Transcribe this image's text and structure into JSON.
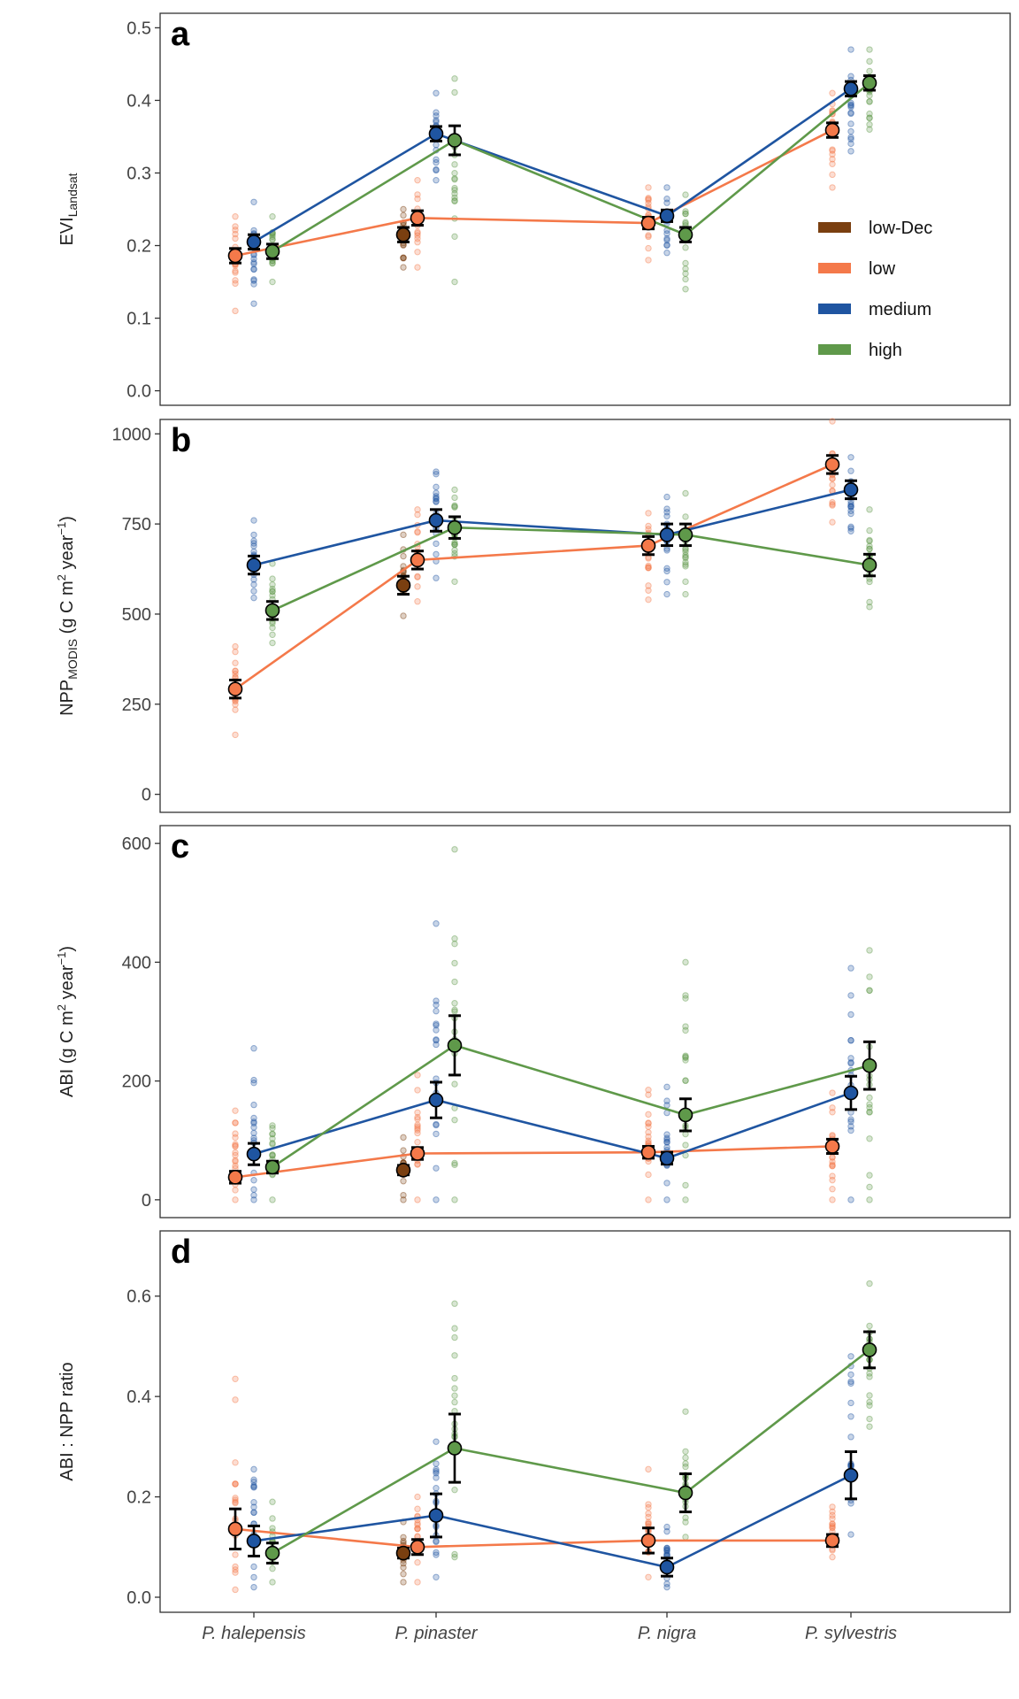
{
  "chart_data": {
    "type": "line",
    "categories": [
      "P. halepensis",
      "P. pinaster",
      "P. nigra",
      "P. sylvestris"
    ],
    "legend": {
      "placement": "inside panel a, right",
      "entries": [
        {
          "name": "low-Dec",
          "color": "#7a3f10"
        },
        {
          "name": "low",
          "color": "#f4794a"
        },
        {
          "name": "medium",
          "color": "#1f55a1"
        },
        {
          "name": "high",
          "color": "#5f994a"
        }
      ]
    },
    "panels": [
      {
        "letter": "a",
        "ylabel": {
          "main": "EVI",
          "sub": "Landsat",
          "rest": ""
        },
        "ylim": [
          -0.02,
          0.52
        ],
        "yticks": [
          0.0,
          0.1,
          0.2,
          0.3,
          0.4,
          0.5
        ],
        "ytick_labels": [
          "0.0",
          "0.1",
          "0.2",
          "0.3",
          "0.4",
          "0.5"
        ],
        "series": [
          {
            "name": "low-Dec",
            "values": [
              null,
              0.215,
              null,
              null
            ],
            "se": [
              null,
              0.01,
              null,
              null
            ],
            "line": false
          },
          {
            "name": "low",
            "values": [
              0.186,
              0.238,
              0.231,
              0.359
            ],
            "se": [
              0.01,
              0.01,
              0.008,
              0.01
            ],
            "line": true
          },
          {
            "name": "medium",
            "values": [
              0.205,
              0.354,
              0.241,
              0.416
            ],
            "se": [
              0.01,
              0.01,
              0.008,
              0.01
            ],
            "line": true
          },
          {
            "name": "high",
            "values": [
              0.192,
              0.345,
              0.215,
              0.424
            ],
            "se": [
              0.01,
              0.02,
              0.01,
              0.01
            ],
            "line": true
          }
        ],
        "raw_ranges": [
          {
            "low": [
              0.11,
              0.24
            ],
            "medium": [
              0.12,
              0.26
            ],
            "high": [
              0.15,
              0.24
            ]
          },
          {
            "low-Dec": [
              0.17,
              0.25
            ],
            "low": [
              0.17,
              0.29
            ],
            "medium": [
              0.29,
              0.41
            ],
            "high": [
              0.15,
              0.43
            ]
          },
          {
            "low": [
              0.18,
              0.28
            ],
            "medium": [
              0.19,
              0.28
            ],
            "high": [
              0.14,
              0.27
            ]
          },
          {
            "low": [
              0.28,
              0.41
            ],
            "medium": [
              0.33,
              0.47
            ],
            "high": [
              0.36,
              0.47
            ]
          }
        ]
      },
      {
        "letter": "b",
        "ylabel": {
          "main": "NPP",
          "sub": "MODIS",
          "rest": " (g C m",
          "sup": "2",
          "rest2": " year",
          "sup2": "−1",
          "end": ")"
        },
        "ylim": [
          -50,
          1040
        ],
        "yticks": [
          0,
          250,
          500,
          750,
          1000
        ],
        "ytick_labels": [
          "0",
          "250",
          "500",
          "750",
          "1000"
        ],
        "series": [
          {
            "name": "low-Dec",
            "values": [
              null,
              580,
              null,
              null
            ],
            "se": [
              null,
              25,
              null,
              null
            ],
            "line": false
          },
          {
            "name": "low",
            "values": [
              292,
              650,
              690,
              915
            ],
            "se": [
              25,
              25,
              25,
              25
            ],
            "line": true
          },
          {
            "name": "medium",
            "values": [
              636,
              760,
              720,
              845
            ],
            "se": [
              25,
              30,
              30,
              25
            ],
            "line": true
          },
          {
            "name": "high",
            "values": [
              510,
              740,
              720,
              636
            ],
            "se": [
              25,
              30,
              30,
              30
            ],
            "line": true
          }
        ],
        "raw_ranges": [
          {
            "low": [
              165,
              410
            ],
            "medium": [
              545,
              760
            ],
            "high": [
              420,
              640
            ]
          },
          {
            "low-Dec": [
              495,
              720
            ],
            "low": [
              535,
              790
            ],
            "medium": [
              600,
              895
            ],
            "high": [
              590,
              845
            ]
          },
          {
            "low": [
              540,
              780
            ],
            "medium": [
              555,
              825
            ],
            "high": [
              555,
              835
            ]
          },
          {
            "low": [
              755,
              1035
            ],
            "medium": [
              730,
              935
            ],
            "high": [
              520,
              790
            ]
          }
        ]
      },
      {
        "letter": "c",
        "ylabel": {
          "main": "ABI",
          "sub": "",
          "rest": " (g C m",
          "sup": "2",
          "rest2": " year",
          "sup2": "−1",
          "end": ")"
        },
        "ylim": [
          -30,
          630
        ],
        "yticks": [
          0,
          200,
          400,
          600
        ],
        "ytick_labels": [
          "0",
          "200",
          "400",
          "600"
        ],
        "series": [
          {
            "name": "low-Dec",
            "values": [
              null,
              50,
              null,
              null
            ],
            "se": [
              null,
              8,
              null,
              null
            ],
            "line": false
          },
          {
            "name": "low",
            "values": [
              38,
              78,
              80,
              90
            ],
            "se": [
              10,
              10,
              10,
              12
            ],
            "line": true
          },
          {
            "name": "medium",
            "values": [
              77,
              168,
              70,
              180
            ],
            "se": [
              18,
              30,
              10,
              28
            ],
            "line": true
          },
          {
            "name": "high",
            "values": [
              55,
              260,
              143,
              226
            ],
            "se": [
              10,
              50,
              27,
              40
            ],
            "line": true
          }
        ],
        "raw_ranges": [
          {
            "low": [
              0,
              150
            ],
            "medium": [
              0,
              255
            ],
            "high": [
              0,
              125
            ]
          },
          {
            "low-Dec": [
              0,
              105
            ],
            "low": [
              0,
              210
            ],
            "medium": [
              0,
              465
            ],
            "high": [
              0,
              590
            ]
          },
          {
            "low": [
              0,
              185
            ],
            "medium": [
              0,
              190
            ],
            "high": [
              0,
              400
            ]
          },
          {
            "low": [
              0,
              180
            ],
            "medium": [
              0,
              390
            ],
            "high": [
              0,
              420
            ]
          }
        ]
      },
      {
        "letter": "d",
        "ylabel": {
          "main": "ABI : NPP ratio",
          "sub": "",
          "rest": ""
        },
        "ylim": [
          -0.03,
          0.73
        ],
        "yticks": [
          0.0,
          0.2,
          0.4,
          0.6
        ],
        "ytick_labels": [
          "0.0",
          "0.2",
          "0.4",
          "0.6"
        ],
        "series": [
          {
            "name": "low-Dec",
            "values": [
              null,
              0.088,
              null,
              null
            ],
            "se": [
              null,
              0.01,
              null,
              null
            ],
            "line": false
          },
          {
            "name": "low",
            "values": [
              0.136,
              0.1,
              0.113,
              0.113
            ],
            "se": [
              0.04,
              0.015,
              0.025,
              0.012
            ],
            "line": true
          },
          {
            "name": "medium",
            "values": [
              0.112,
              0.163,
              0.06,
              0.243
            ],
            "se": [
              0.03,
              0.043,
              0.018,
              0.047
            ],
            "line": true
          },
          {
            "name": "high",
            "values": [
              0.088,
              0.297,
              0.208,
              0.493
            ],
            "se": [
              0.02,
              0.068,
              0.038,
              0.036
            ],
            "line": true
          }
        ],
        "raw_ranges": [
          {
            "low": [
              0.015,
              0.435
            ],
            "medium": [
              0.02,
              0.255
            ],
            "high": [
              0.03,
              0.19
            ]
          },
          {
            "low-Dec": [
              0.03,
              0.15
            ],
            "low": [
              0.03,
              0.2
            ],
            "medium": [
              0.04,
              0.31
            ],
            "high": [
              0.08,
              0.585
            ]
          },
          {
            "low": [
              0.04,
              0.255
            ],
            "medium": [
              0.02,
              0.14
            ],
            "high": [
              0.12,
              0.37
            ]
          },
          {
            "low": [
              0.08,
              0.18
            ],
            "medium": [
              0.125,
              0.48
            ],
            "high": [
              0.34,
              0.625
            ]
          }
        ]
      }
    ]
  }
}
